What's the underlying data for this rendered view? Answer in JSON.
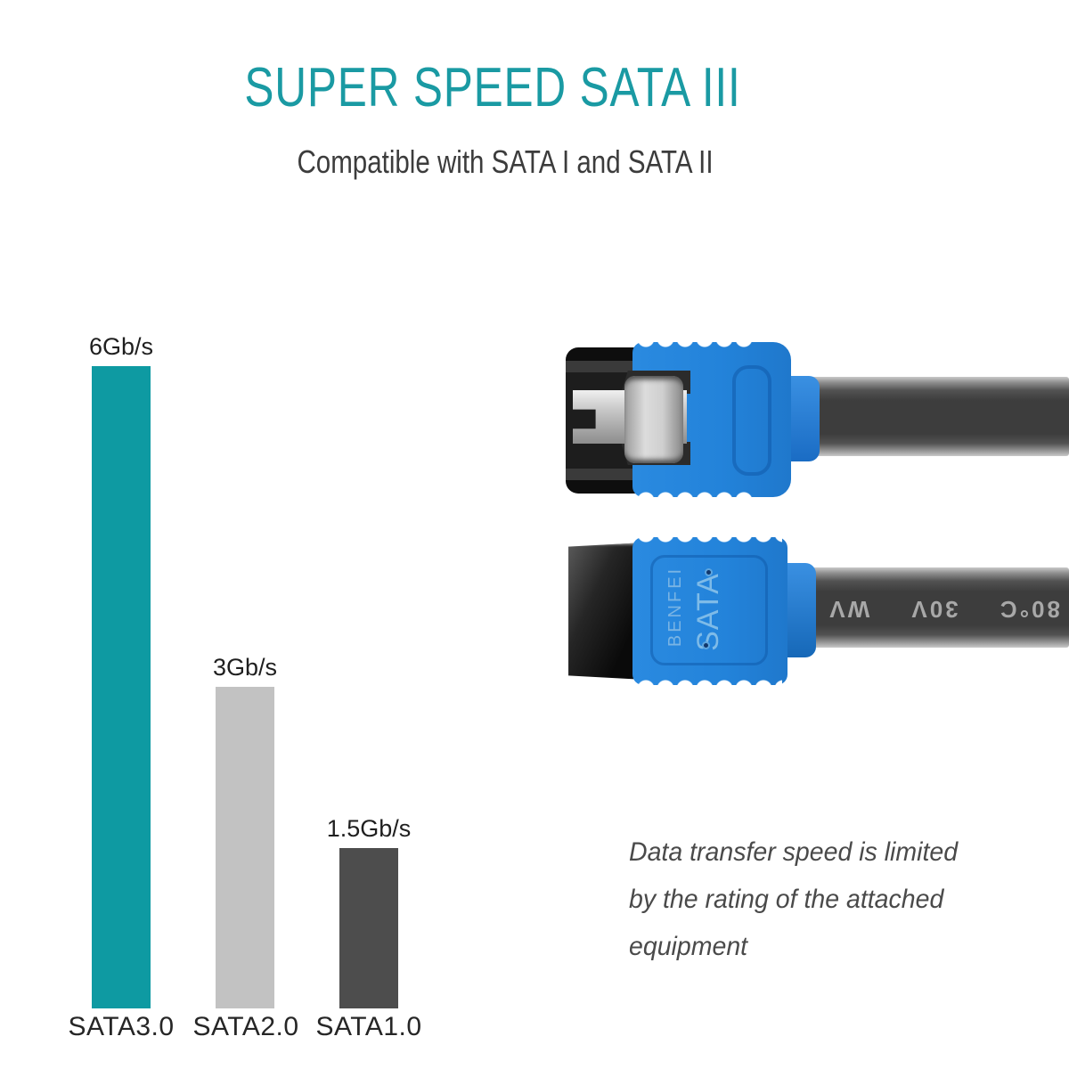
{
  "header": {
    "title": "SUPER SPEED SATA III",
    "subtitle": "Compatible with SATA I and SATA II"
  },
  "chart_data": {
    "type": "bar",
    "title": "",
    "xlabel": "",
    "ylabel": "",
    "unit": "Gb/s",
    "categories": [
      "SATA3.0",
      "SATA2.0",
      "SATA1.0"
    ],
    "values": [
      6,
      3,
      1.5
    ],
    "value_labels": [
      "6Gb/s",
      "3Gb/s",
      "1.5Gb/s"
    ],
    "colors": [
      "#0e9aa2",
      "#c2c2c2",
      "#4d4d4d"
    ],
    "ylim": [
      0,
      6
    ],
    "grid": false,
    "legend": false,
    "bar_label_position": "above"
  },
  "product": {
    "brand": "BENFEI",
    "label": "SATA",
    "cable_marking": "80°C 30V WV"
  },
  "footnote": {
    "lines": [
      "Data transfer speed is limited",
      "by the rating of the attached",
      "equipment"
    ]
  },
  "colors": {
    "title_teal": "#1a9aa3",
    "accent_teal": "#0e9aa2",
    "bar_light_gray": "#c2c2c2",
    "bar_dark_gray": "#4d4d4d",
    "connector_blue": "#2383da",
    "cable_dark": "#3d3d3d",
    "text_dark": "#3c3c3c"
  }
}
